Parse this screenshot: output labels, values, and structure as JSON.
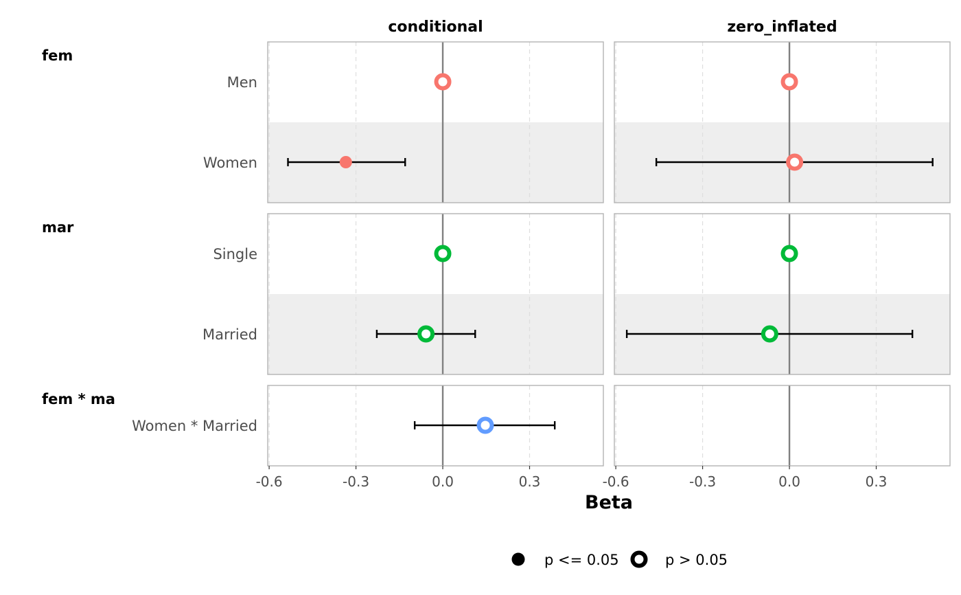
{
  "chart_data": {
    "type": "forest",
    "xlabel": "Beta",
    "xlim": [
      -0.605,
      0.555
    ],
    "xticks": [
      -0.6,
      -0.3,
      0.0,
      0.3
    ],
    "xtick_labels": [
      "-0.6",
      "-0.3",
      "0.0",
      "0.3"
    ],
    "reference_line": 0,
    "facets": [
      {
        "key": "conditional",
        "title": "conditional"
      },
      {
        "key": "zero_inflated",
        "title": "zero_inflated"
      }
    ],
    "groups": [
      {
        "label": "fem",
        "terms": [
          {
            "label": "Men",
            "conditional": {
              "estimate": 0.0,
              "lower": null,
              "upper": null,
              "significant": false
            },
            "zero_inflated": {
              "estimate": 0.0,
              "lower": null,
              "upper": null,
              "significant": false
            }
          },
          {
            "label": "Women",
            "conditional": {
              "estimate": -0.335,
              "lower": -0.535,
              "upper": -0.13,
              "significant": true
            },
            "zero_inflated": {
              "estimate": 0.018,
              "lower": -0.46,
              "upper": 0.495,
              "significant": false
            }
          }
        ]
      },
      {
        "label": "mar",
        "terms": [
          {
            "label": "Single",
            "conditional": {
              "estimate": 0.0,
              "lower": null,
              "upper": null,
              "significant": false
            },
            "zero_inflated": {
              "estimate": 0.0,
              "lower": null,
              "upper": null,
              "significant": false
            }
          },
          {
            "label": "Married",
            "conditional": {
              "estimate": -0.058,
              "lower": -0.228,
              "upper": 0.112,
              "significant": false
            },
            "zero_inflated": {
              "estimate": -0.068,
              "lower": -0.562,
              "upper": 0.425,
              "significant": false
            }
          }
        ]
      },
      {
        "label": "fem * ma",
        "terms": [
          {
            "label": "Women * Married",
            "conditional": {
              "estimate": 0.147,
              "lower": -0.097,
              "upper": 0.387,
              "significant": false
            },
            "zero_inflated": null
          }
        ]
      }
    ],
    "legend": {
      "position": "bottom",
      "items": [
        {
          "label": "p <= 0.05",
          "shape": "filled"
        },
        {
          "label": "p > 0.05",
          "shape": "hollow"
        }
      ]
    },
    "grid": true
  },
  "colors": {
    "fem": "#F8766D",
    "mar": "#00BA38",
    "fem * ma": "#619CFF",
    "band": "#eeeeee",
    "reference_line": "#808080",
    "panel_border": "#b3b3b3",
    "gridline": "#dedede",
    "errorbar": "#000000"
  }
}
